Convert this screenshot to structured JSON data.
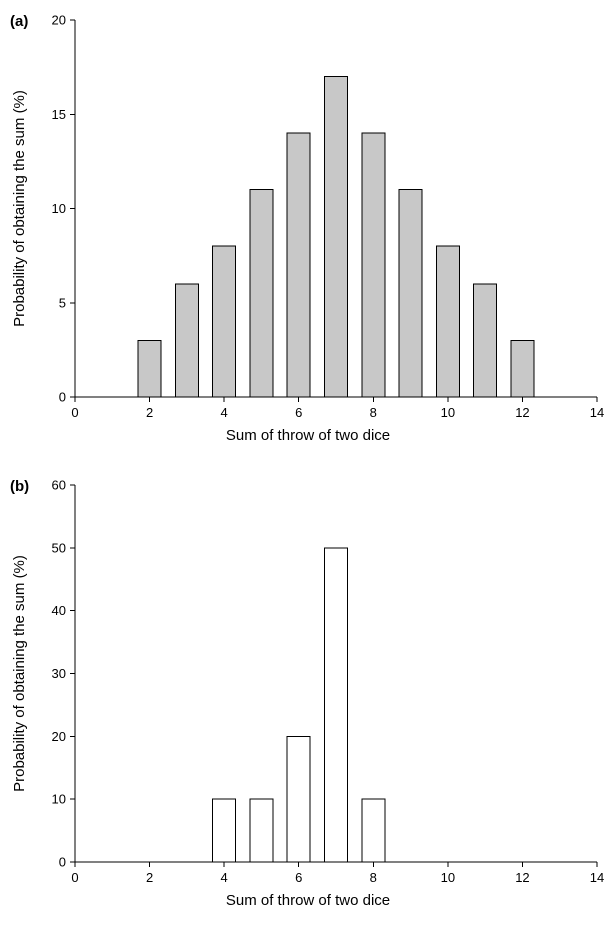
{
  "chart_data": [
    {
      "panel_label": "(a)",
      "type": "bar",
      "x": [
        2,
        3,
        4,
        5,
        6,
        7,
        8,
        9,
        10,
        11,
        12
      ],
      "values": [
        3,
        6,
        8,
        11,
        14,
        17,
        14,
        11,
        8,
        6,
        3
      ],
      "xlabel": "Sum of throw of two dice",
      "ylabel": "Probability of obtaining the sum (%)",
      "xlim": [
        0,
        14
      ],
      "ylim": [
        0,
        20
      ],
      "xticks": [
        0,
        2,
        4,
        6,
        8,
        10,
        12,
        14
      ],
      "yticks": [
        0,
        5,
        10,
        15,
        20
      ],
      "bar_color": "#c8c8c8",
      "grid": false
    },
    {
      "panel_label": "(b)",
      "type": "bar",
      "x": [
        4,
        5,
        6,
        7,
        8
      ],
      "values": [
        10,
        10,
        20,
        50,
        10
      ],
      "xlabel": "Sum of throw of two dice",
      "ylabel": "Probability of obtaining the sum (%)",
      "xlim": [
        0,
        14
      ],
      "ylim": [
        0,
        60
      ],
      "xticks": [
        0,
        2,
        4,
        6,
        8,
        10,
        12,
        14
      ],
      "yticks": [
        0,
        10,
        20,
        30,
        40,
        50,
        60
      ],
      "bar_color": "#ffffff",
      "grid": false
    }
  ]
}
